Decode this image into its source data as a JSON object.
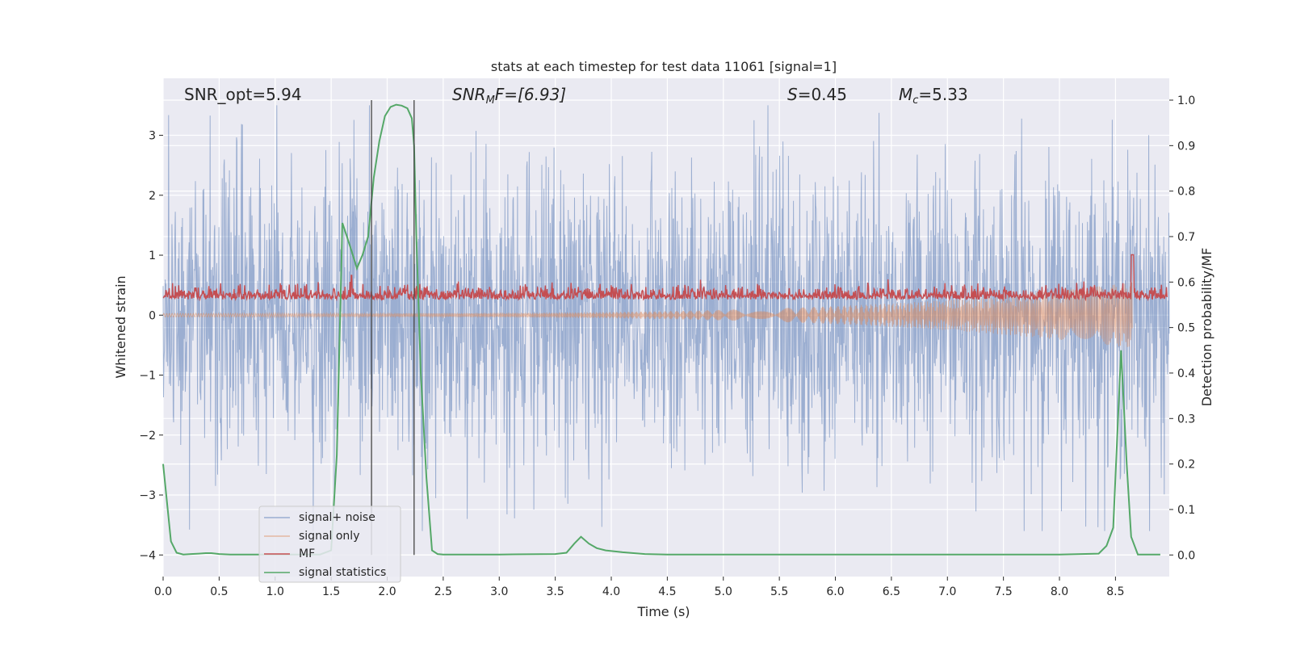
{
  "chart_data": {
    "type": "line",
    "title": "stats at each timestep for test data 11061 [signal=1]",
    "xlabel": "Time (s)",
    "ylabel_left": "Whitened strain",
    "ylabel_right": "Detection probability/MF",
    "xlim": [
      0.0,
      8.98
    ],
    "ylim_left": [
      -4.36,
      3.95
    ],
    "ylim_right": [
      0.0,
      1.0
    ],
    "x_ticks": [
      "0.0",
      "0.5",
      "1.0",
      "1.5",
      "2.0",
      "2.5",
      "3.0",
      "3.5",
      "4.0",
      "4.5",
      "5.0",
      "5.5",
      "6.0",
      "6.5",
      "7.0",
      "7.5",
      "8.0",
      "8.5"
    ],
    "x_tick_values": [
      0.0,
      0.5,
      1.0,
      1.5,
      2.0,
      2.5,
      3.0,
      3.5,
      4.0,
      4.5,
      5.0,
      5.5,
      6.0,
      6.5,
      7.0,
      7.5,
      8.0,
      8.5
    ],
    "y_ticks_left": [
      "−4",
      "−3",
      "−2",
      "−1",
      "0",
      "1",
      "2",
      "3"
    ],
    "y_tick_values_left": [
      -4,
      -3,
      -2,
      -1,
      0,
      1,
      2,
      3
    ],
    "y_ticks_right": [
      "0.0",
      "0.1",
      "0.2",
      "0.3",
      "0.4",
      "0.5",
      "0.6",
      "0.7",
      "0.8",
      "0.9",
      "1.0"
    ],
    "y_tick_values_right": [
      0.0,
      0.1,
      0.2,
      0.3,
      0.4,
      0.5,
      0.6,
      0.7,
      0.8,
      0.9,
      1.0
    ],
    "grid": true,
    "legend_position": "lower-left",
    "annotations": {
      "snr_opt": "SNR_opt=5.94",
      "snr_mf_name": "SNR",
      "snr_mf_sub": "M",
      "snr_mf_rest": "F=[6.93]",
      "s_name": "S",
      "s_rest": "=0.45",
      "mc_name": "M",
      "mc_sub": "c",
      "mc_rest": "=5.33"
    },
    "vertical_lines_x": [
      1.86,
      2.24
    ],
    "series": [
      {
        "name": "signal+ noise",
        "color": "#4c72b0",
        "summary": "noisy whitened strain, typical amplitude ±1.3, peaks to about ±3.5"
      },
      {
        "name": "signal only",
        "color": "#dd8452",
        "summary": "chirp with amplitude growing from about 0.03 at 0 s to about 0.55 at 8.65 s, ending at 8.65 s"
      },
      {
        "name": "MF",
        "color": "#c44e52",
        "summary": "matched filter output oscillating between about 0.55 and 0.6 on the right axis, spike to 0.66 at 8.65 s"
      },
      {
        "name": "signal statistics",
        "color": "#55a868",
        "x": [
          0.0,
          0.07,
          0.12,
          0.18,
          0.25,
          0.32,
          0.38,
          0.43,
          0.5,
          0.6,
          0.8,
          1.0,
          1.2,
          1.4,
          1.5,
          1.55,
          1.6,
          1.64,
          1.68,
          1.73,
          1.78,
          1.83,
          1.88,
          1.93,
          1.98,
          2.03,
          2.08,
          2.13,
          2.18,
          2.22,
          2.24,
          2.26,
          2.3,
          2.35,
          2.4,
          2.45,
          2.5,
          3.0,
          3.5,
          3.6,
          3.67,
          3.73,
          3.8,
          3.87,
          3.95,
          4.1,
          4.3,
          4.5,
          5.0,
          6.0,
          7.0,
          8.0,
          8.35,
          8.42,
          8.48,
          8.55,
          8.6,
          8.64,
          8.7,
          8.9
        ],
        "values": [
          0.2,
          0.03,
          0.005,
          0.001,
          0.002,
          0.003,
          0.004,
          0.004,
          0.002,
          0.001,
          0.001,
          0.001,
          0.001,
          0.001,
          0.01,
          0.22,
          0.73,
          0.7,
          0.67,
          0.63,
          0.66,
          0.7,
          0.83,
          0.91,
          0.965,
          0.985,
          0.99,
          0.988,
          0.982,
          0.96,
          0.9,
          0.7,
          0.4,
          0.17,
          0.01,
          0.002,
          0.001,
          0.001,
          0.002,
          0.005,
          0.025,
          0.04,
          0.025,
          0.015,
          0.01,
          0.006,
          0.002,
          0.001,
          0.001,
          0.001,
          0.001,
          0.001,
          0.003,
          0.02,
          0.06,
          0.45,
          0.2,
          0.04,
          0.001,
          0.001
        ]
      }
    ]
  }
}
